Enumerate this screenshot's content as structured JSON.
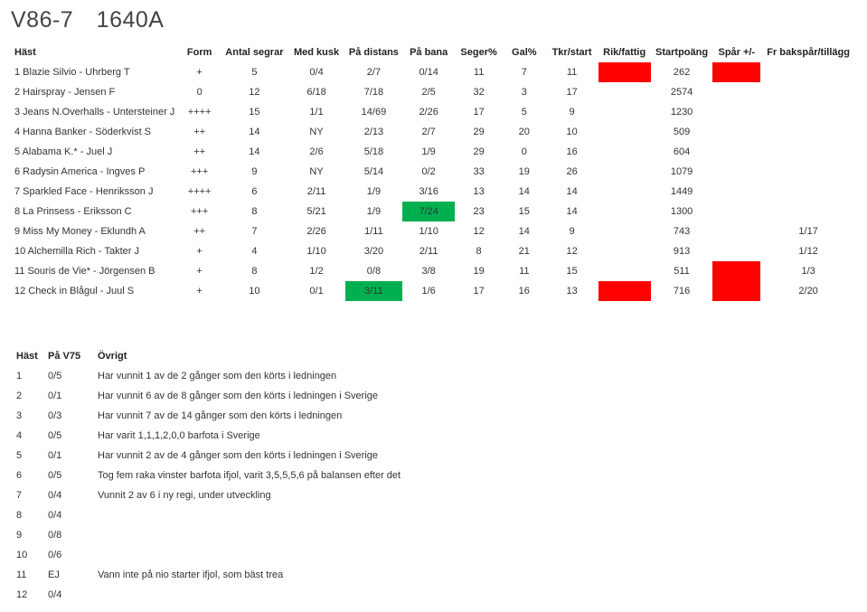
{
  "title": {
    "race": "V86-7",
    "code": "1640A"
  },
  "columns": [
    "Häst",
    "Form",
    "Antal segrar",
    "Med kusk",
    "På distans",
    "På bana",
    "Seger%",
    "Gal%",
    "Tkr/start",
    "Rik/fattig",
    "Startpoäng",
    "Spår +/-",
    "Fr bakspår/tillägg"
  ],
  "rows": [
    {
      "name": "1 Blazie Silvio - Uhrberg T",
      "form": "+",
      "segrar": "5",
      "kusk": "0/4",
      "distans": "2/7",
      "bana": "0/14",
      "seger": "11",
      "gal": "7",
      "tkr": "11",
      "rik": "red",
      "start": "262",
      "spar": "red",
      "fr": ""
    },
    {
      "name": "2 Hairspray - Jensen F",
      "form": "0",
      "segrar": "12",
      "kusk": "6/18",
      "distans": "7/18",
      "bana": "2/5",
      "seger": "32",
      "gal": "3",
      "tkr": "17",
      "rik": "",
      "start": "2574",
      "spar": "",
      "fr": ""
    },
    {
      "name": "3 Jeans N.Overhalls - Untersteiner J",
      "form": "++++",
      "segrar": "15",
      "kusk": "1/1",
      "distans": "14/69",
      "bana": "2/26",
      "seger": "17",
      "gal": "5",
      "tkr": "9",
      "rik": "",
      "start": "1230",
      "spar": "",
      "fr": ""
    },
    {
      "name": "4 Hanna Banker - Söderkvist S",
      "form": "++",
      "segrar": "14",
      "kusk": "NY",
      "distans": "2/13",
      "bana": "2/7",
      "seger": "29",
      "gal": "20",
      "tkr": "10",
      "rik": "",
      "start": "509",
      "spar": "",
      "fr": ""
    },
    {
      "name": "5 Alabama K.* - Juel J",
      "form": "++",
      "segrar": "14",
      "kusk": "2/6",
      "distans": "5/18",
      "bana": "1/9",
      "seger": "29",
      "gal": "0",
      "tkr": "16",
      "rik": "",
      "start": "604",
      "spar": "",
      "fr": ""
    },
    {
      "name": "6 Radysin America - Ingves P",
      "form": "+++",
      "segrar": "9",
      "kusk": "NY",
      "distans": "5/14",
      "bana": "0/2",
      "seger": "33",
      "gal": "19",
      "tkr": "26",
      "rik": "",
      "start": "1079",
      "spar": "",
      "fr": ""
    },
    {
      "name": "7 Sparkled Face - Henriksson J",
      "form": "++++",
      "segrar": "6",
      "kusk": "2/11",
      "distans": "1/9",
      "bana": "3/16",
      "seger": "13",
      "gal": "14",
      "tkr": "14",
      "rik": "",
      "start": "1449",
      "spar": "",
      "fr": ""
    },
    {
      "name": "8 La Prinsess - Eriksson C",
      "form": "+++",
      "segrar": "8",
      "kusk": "5/21",
      "distans": "1/9",
      "bana": "7/24",
      "seger": "23",
      "gal": "15",
      "tkr": "14",
      "rik": "",
      "start": "1300",
      "spar": "",
      "fr": "",
      "bana_class": "green"
    },
    {
      "name": "9 Miss My Money - Eklundh A",
      "form": "++",
      "segrar": "7",
      "kusk": "2/26",
      "distans": "1/11",
      "bana": "1/10",
      "seger": "12",
      "gal": "14",
      "tkr": "9",
      "rik": "",
      "start": "743",
      "spar": "",
      "fr": "1/17"
    },
    {
      "name": "10 Alchemilla Rich - Takter J",
      "form": "+",
      "segrar": "4",
      "kusk": "1/10",
      "distans": "3/20",
      "bana": "2/11",
      "seger": "8",
      "gal": "21",
      "tkr": "12",
      "rik": "",
      "start": "913",
      "spar": "",
      "fr": "1/12"
    },
    {
      "name": "11 Souris de Vie* - Jörgensen B",
      "form": "+",
      "segrar": "8",
      "kusk": "1/2",
      "distans": "0/8",
      "bana": "3/8",
      "seger": "19",
      "gal": "11",
      "tkr": "15",
      "rik": "",
      "start": "511",
      "spar": "red",
      "fr": "1/3"
    },
    {
      "name": "12 Check in Blågul - Juul S",
      "form": "+",
      "segrar": "10",
      "kusk": "0/1",
      "distans": "3/11",
      "bana": "1/6",
      "seger": "17",
      "gal": "16",
      "tkr": "13",
      "rik": "red",
      "start": "716",
      "spar": "red",
      "fr": "2/20",
      "distans_class": "green"
    }
  ],
  "notes_header": {
    "c1": "Häst",
    "c2": "På V75",
    "c3": "Övrigt"
  },
  "notes": [
    {
      "n": "1",
      "pv": "0/5",
      "txt": "Har vunnit 1 av de 2 gånger som den körts i ledningen"
    },
    {
      "n": "2",
      "pv": "0/1",
      "txt": "Har vunnit 6 av de 8 gånger som den körts i ledningen i Sverige"
    },
    {
      "n": "3",
      "pv": "0/3",
      "txt": "Har vunnit 7 av de 14 gånger som den körts i ledningen"
    },
    {
      "n": "4",
      "pv": "0/5",
      "txt": "Har varit 1,1,1,2,0,0 barfota i Sverige"
    },
    {
      "n": "5",
      "pv": "0/1",
      "txt": "Har vunnit 2 av de 4 gånger som den körts i ledningen i Sverige"
    },
    {
      "n": "6",
      "pv": "0/5",
      "txt": "Tog fem raka vinster barfota ifjol, varit 3,5,5,5,6 på balansen efter det"
    },
    {
      "n": "7",
      "pv": "0/4",
      "txt": "Vunnit 2 av 6 i ny regi, under utveckling"
    },
    {
      "n": "8",
      "pv": "0/4",
      "txt": ""
    },
    {
      "n": "9",
      "pv": "0/8",
      "txt": ""
    },
    {
      "n": "10",
      "pv": "0/6",
      "txt": ""
    },
    {
      "n": "11",
      "pv": "EJ",
      "txt": "Vann inte på nio starter ifjol, som bäst trea"
    },
    {
      "n": "12",
      "pv": "0/4",
      "txt": ""
    }
  ]
}
